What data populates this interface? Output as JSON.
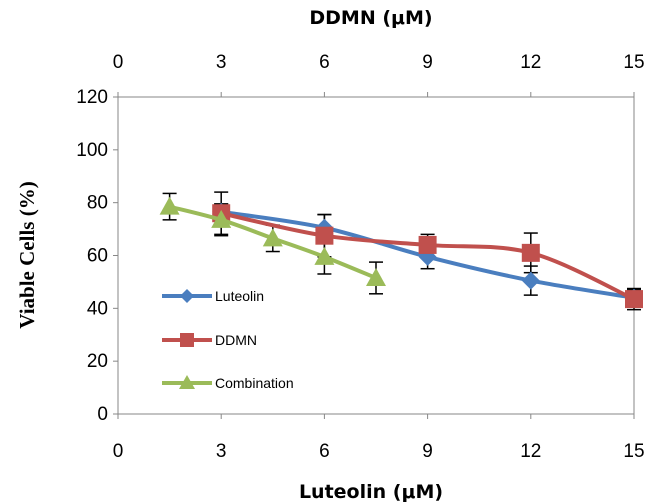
{
  "chart_data": {
    "type": "line",
    "x_top_label": "DDMN (μM)",
    "x_bottom_label": "Luteolin (μM)",
    "ylabel": "Viable Cells (%)",
    "xlim": [
      0,
      15
    ],
    "ylim": [
      0,
      120
    ],
    "x_ticks": [
      0,
      3,
      6,
      9,
      12,
      15
    ],
    "y_ticks": [
      0,
      20,
      40,
      60,
      80,
      100,
      120
    ],
    "grid": false,
    "legend_position": "left-bottom",
    "series": [
      {
        "name": "Luteolin",
        "color": "#4a7ebf",
        "marker": "diamond",
        "x": [
          3,
          6,
          9,
          12,
          15
        ],
        "y": [
          76.5,
          70.5,
          59.5,
          50.5,
          44
        ],
        "err": [
          3,
          5,
          4.5,
          5.5,
          3
        ]
      },
      {
        "name": "DDMN",
        "color": "#c0504d",
        "marker": "square",
        "x": [
          3,
          6,
          9,
          12,
          15
        ],
        "y": [
          76,
          67.5,
          64,
          61,
          43.5
        ],
        "err": [
          8,
          8,
          4,
          7.5,
          4
        ]
      },
      {
        "name": "Combination",
        "color": "#9bbb59",
        "marker": "triangle",
        "x": [
          1.5,
          3,
          4.5,
          6,
          7.5
        ],
        "y": [
          78.5,
          73.5,
          66.5,
          59.5,
          51.5
        ],
        "err": [
          5,
          6,
          5,
          6.5,
          6
        ]
      }
    ]
  }
}
